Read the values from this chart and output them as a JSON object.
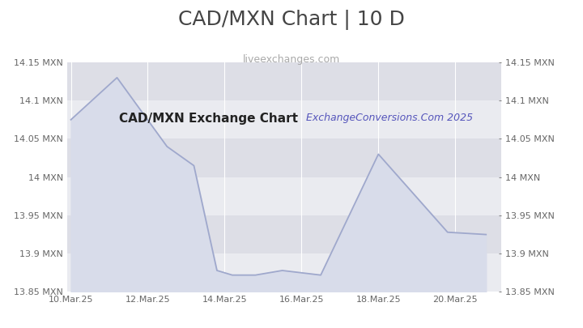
{
  "title": "CAD/MXN Chart | 10 D",
  "subtitle": "liveexchanges.com",
  "watermark": "ExchangeConversions.Com 2025",
  "inner_label": "CAD/MXN Exchange Chart",
  "x_labels": [
    "10.Mar.25",
    "12.Mar.25",
    "14.Mar.25",
    "16.Mar.25",
    "18.Mar.25",
    "20.Mar.25"
  ],
  "x_tick_pos": [
    0,
    2,
    4,
    6,
    8,
    10
  ],
  "y_values": [
    14.075,
    14.13,
    14.04,
    14.015,
    13.878,
    13.872,
    13.872,
    13.878,
    13.872,
    14.03,
    13.928,
    13.925
  ],
  "x_data": [
    0,
    1.2,
    2.5,
    3.2,
    3.8,
    4.2,
    4.8,
    5.5,
    6.5,
    8.0,
    9.8,
    10.8
  ],
  "ylim": [
    13.85,
    14.15
  ],
  "yticks": [
    13.85,
    13.9,
    13.95,
    14.0,
    14.05,
    14.1,
    14.15
  ],
  "ytick_labels_left": [
    "13.85 MXN",
    "13.9 MXN",
    "13.95 MXN",
    "14 MXN",
    "14.05 MXN",
    "14.1 MXN",
    "14.15 MXN"
  ],
  "ytick_labels_right": [
    "13.85 MXN",
    "13.9 MXN",
    "13.95 MXN",
    "14 MXN",
    "14.05 MXN",
    "14.1 MXN",
    "14.15 MXN"
  ],
  "line_color": "#9fa8cc",
  "fill_color": "#d8dcea",
  "header_bg": "#ffffff",
  "chart_bg_light": "#eaebf0",
  "chart_bg_dark": "#dddee6",
  "grid_color": "#ffffff",
  "title_color": "#444444",
  "subtitle_color": "#aaaaaa",
  "watermark_color": "#5555bb",
  "inner_label_color": "#222222",
  "tick_color": "#666666",
  "title_fontsize": 18,
  "subtitle_fontsize": 9,
  "watermark_fontsize": 9,
  "inner_label_fontsize": 11,
  "tick_fontsize": 8,
  "right_tick_dot_color": "#888888"
}
